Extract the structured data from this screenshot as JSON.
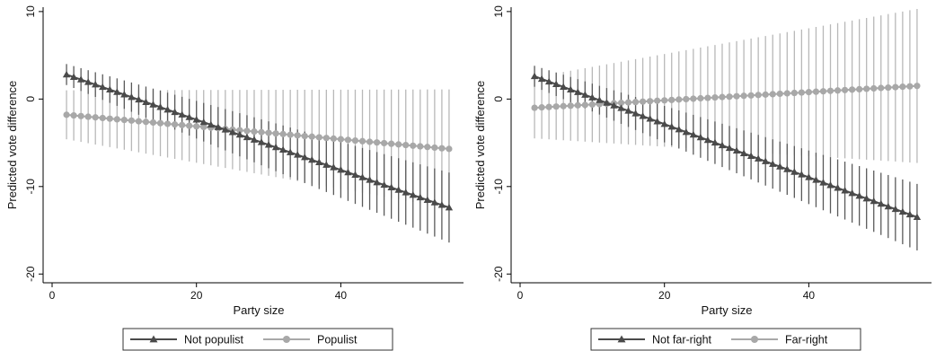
{
  "colors": {
    "series_dark": "#4a4a4a",
    "series_light": "#a8a8a8",
    "ci_dark": "#5a5a5a",
    "ci_light": "#b8b8b8"
  },
  "chart_data": [
    {
      "type": "line",
      "xlabel": "Party size",
      "ylabel": "Predicted vote difference",
      "xlim": [
        0,
        57
      ],
      "ylim": [
        -21,
        10.5
      ],
      "xticks": [
        0,
        20,
        40
      ],
      "yticks": [
        10,
        0,
        -10,
        -20
      ],
      "grid": false,
      "error_bars": "vertical confidence intervals at each x",
      "legend_position": "bottom",
      "x": {
        "start": 2,
        "end": 55,
        "step": 1
      },
      "series": [
        {
          "name": "Not populist",
          "marker": "triangle",
          "color": "#4a4a4a",
          "ci_color": "#5a5a5a",
          "y_start": 2.8,
          "y_end": -12.4,
          "ci_halfwidth_start": 1.2,
          "ci_halfwidth_end": 4.0
        },
        {
          "name": "Populist",
          "marker": "circle",
          "color": "#a8a8a8",
          "ci_color": "#b8b8b8",
          "y_start": -1.8,
          "y_end": -5.7,
          "ci_halfwidth_start": 2.8,
          "ci_halfwidth_end": 6.8
        }
      ]
    },
    {
      "type": "line",
      "xlabel": "Party size",
      "ylabel": "Predicted vote difference",
      "xlim": [
        0,
        57
      ],
      "ylim": [
        -21,
        10.5
      ],
      "xticks": [
        0,
        20,
        40
      ],
      "yticks": [
        10,
        0,
        -10,
        -20
      ],
      "grid": false,
      "error_bars": "vertical confidence intervals at each x",
      "legend_position": "bottom",
      "x": {
        "start": 2,
        "end": 55,
        "step": 1
      },
      "series": [
        {
          "name": "Not far-right",
          "marker": "triangle",
          "color": "#4a4a4a",
          "ci_color": "#5a5a5a",
          "y_start": 2.6,
          "y_end": -13.5,
          "ci_halfwidth_start": 1.2,
          "ci_halfwidth_end": 3.8
        },
        {
          "name": "Far-right",
          "marker": "circle",
          "color": "#a8a8a8",
          "ci_color": "#b8b8b8",
          "y_start": -1.0,
          "y_end": 1.5,
          "ci_halfwidth_start": 3.5,
          "ci_halfwidth_end": 8.8
        }
      ]
    }
  ]
}
